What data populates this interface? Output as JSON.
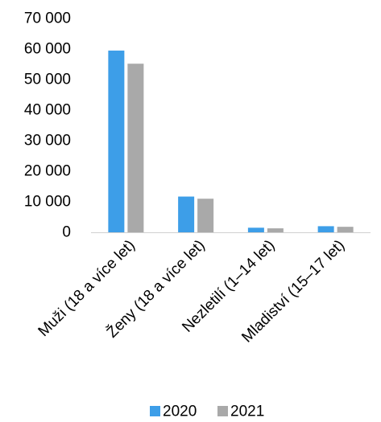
{
  "chart_data": {
    "type": "bar",
    "categories": [
      "Muži (18 a více let)",
      "Ženy (18 a více let)",
      "Nezletilí (1–14 let)",
      "Mladiství (15–17 let)"
    ],
    "series": [
      {
        "name": "2020",
        "color": "#3d9ee8",
        "values": [
          59500,
          11700,
          1500,
          2000
        ]
      },
      {
        "name": "2021",
        "color": "#a9a9a9",
        "values": [
          55200,
          11000,
          1300,
          1800
        ]
      }
    ],
    "ylim": [
      0,
      70000
    ],
    "yticks": [
      0,
      10000,
      20000,
      30000,
      40000,
      50000,
      60000,
      70000
    ],
    "ytick_labels": [
      "0",
      "10 000",
      "20 000",
      "30 000",
      "40 000",
      "50 000",
      "60 000",
      "70 000"
    ],
    "grid": false,
    "legend_position": "bottom"
  }
}
